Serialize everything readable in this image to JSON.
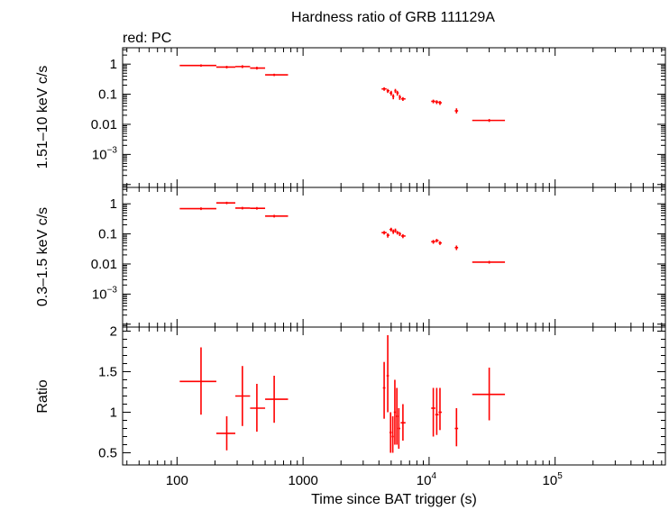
{
  "chart_data": {
    "type": "scatter",
    "title": "Hardness ratio of GRB 111129A",
    "subtitle": "red: PC",
    "xlabel": "Time since BAT trigger (s)",
    "xscale": "log",
    "xlim": [
      37,
      750000
    ],
    "x_ticks": [
      {
        "value": 100,
        "label": "100"
      },
      {
        "value": 1000,
        "label": "1000"
      },
      {
        "value": 10000,
        "label": "10",
        "exp": "4"
      },
      {
        "value": 100000,
        "label": "10",
        "exp": "5"
      }
    ],
    "color": "#ff0000",
    "panels": [
      {
        "id": "hard",
        "ylabel": "1.51–10 keV c/s",
        "yscale": "log",
        "ylim": [
          8e-05,
          3.5
        ],
        "y_ticks": [
          {
            "value": 1,
            "label": "1"
          },
          {
            "value": 0.1,
            "label": "0.1"
          },
          {
            "value": 0.01,
            "label": "0.01"
          },
          {
            "value": 0.001,
            "label": "10",
            "exp": "−3"
          }
        ],
        "points": [
          {
            "x": 155,
            "xlo": 105,
            "xhi": 205,
            "y": 0.9,
            "ylo": 0.82,
            "yhi": 0.98
          },
          {
            "x": 248,
            "xlo": 205,
            "xhi": 290,
            "y": 0.8,
            "ylo": 0.72,
            "yhi": 0.88
          },
          {
            "x": 330,
            "xlo": 290,
            "xhi": 380,
            "y": 0.83,
            "ylo": 0.74,
            "yhi": 0.92
          },
          {
            "x": 430,
            "xlo": 380,
            "xhi": 500,
            "y": 0.74,
            "ylo": 0.66,
            "yhi": 0.82
          },
          {
            "x": 590,
            "xlo": 500,
            "xhi": 760,
            "y": 0.44,
            "ylo": 0.4,
            "yhi": 0.48
          },
          {
            "x": 4400,
            "xlo": 4200,
            "xhi": 4600,
            "y": 0.15,
            "ylo": 0.13,
            "yhi": 0.17
          },
          {
            "x": 4700,
            "xlo": 4600,
            "xhi": 4850,
            "y": 0.13,
            "ylo": 0.11,
            "yhi": 0.15
          },
          {
            "x": 5000,
            "xlo": 4850,
            "xhi": 5100,
            "y": 0.11,
            "ylo": 0.09,
            "yhi": 0.13
          },
          {
            "x": 5200,
            "xlo": 5100,
            "xhi": 5300,
            "y": 0.085,
            "ylo": 0.068,
            "yhi": 0.1
          },
          {
            "x": 5400,
            "xlo": 5300,
            "xhi": 5500,
            "y": 0.13,
            "ylo": 0.11,
            "yhi": 0.15
          },
          {
            "x": 5600,
            "xlo": 5500,
            "xhi": 5750,
            "y": 0.11,
            "ylo": 0.09,
            "yhi": 0.13
          },
          {
            "x": 5850,
            "xlo": 5750,
            "xhi": 6000,
            "y": 0.08,
            "ylo": 0.065,
            "yhi": 0.095
          },
          {
            "x": 6200,
            "xlo": 6000,
            "xhi": 6500,
            "y": 0.07,
            "ylo": 0.06,
            "yhi": 0.08
          },
          {
            "x": 10800,
            "xlo": 10400,
            "xhi": 11200,
            "y": 0.058,
            "ylo": 0.05,
            "yhi": 0.066
          },
          {
            "x": 11500,
            "xlo": 11200,
            "xhi": 11900,
            "y": 0.055,
            "ylo": 0.047,
            "yhi": 0.063
          },
          {
            "x": 12200,
            "xlo": 11900,
            "xhi": 12600,
            "y": 0.052,
            "ylo": 0.044,
            "yhi": 0.06
          },
          {
            "x": 16500,
            "xlo": 16000,
            "xhi": 17000,
            "y": 0.028,
            "ylo": 0.023,
            "yhi": 0.034
          },
          {
            "x": 30000,
            "xlo": 22000,
            "xhi": 40000,
            "y": 0.0135,
            "ylo": 0.012,
            "yhi": 0.015
          }
        ]
      },
      {
        "id": "soft",
        "ylabel": "0.3–1.5 keV c/s",
        "yscale": "log",
        "ylim": [
          8e-05,
          3.5
        ],
        "y_ticks": [
          {
            "value": 1,
            "label": "1"
          },
          {
            "value": 0.1,
            "label": "0.1"
          },
          {
            "value": 0.01,
            "label": "0.01"
          },
          {
            "value": 0.001,
            "label": "10",
            "exp": "−3"
          }
        ],
        "points": [
          {
            "x": 155,
            "xlo": 105,
            "xhi": 205,
            "y": 0.69,
            "ylo": 0.62,
            "yhi": 0.76
          },
          {
            "x": 248,
            "xlo": 205,
            "xhi": 290,
            "y": 1.07,
            "ylo": 0.97,
            "yhi": 1.17
          },
          {
            "x": 330,
            "xlo": 290,
            "xhi": 380,
            "y": 0.72,
            "ylo": 0.65,
            "yhi": 0.79
          },
          {
            "x": 430,
            "xlo": 380,
            "xhi": 500,
            "y": 0.71,
            "ylo": 0.64,
            "yhi": 0.78
          },
          {
            "x": 590,
            "xlo": 500,
            "xhi": 760,
            "y": 0.39,
            "ylo": 0.35,
            "yhi": 0.43
          },
          {
            "x": 4400,
            "xlo": 4200,
            "xhi": 4600,
            "y": 0.11,
            "ylo": 0.095,
            "yhi": 0.125
          },
          {
            "x": 4700,
            "xlo": 4600,
            "xhi": 4850,
            "y": 0.09,
            "ylo": 0.075,
            "yhi": 0.105
          },
          {
            "x": 5000,
            "xlo": 4850,
            "xhi": 5100,
            "y": 0.14,
            "ylo": 0.12,
            "yhi": 0.16
          },
          {
            "x": 5200,
            "xlo": 5100,
            "xhi": 5300,
            "y": 0.12,
            "ylo": 0.1,
            "yhi": 0.14
          },
          {
            "x": 5400,
            "xlo": 5300,
            "xhi": 5500,
            "y": 0.13,
            "ylo": 0.11,
            "yhi": 0.15
          },
          {
            "x": 5600,
            "xlo": 5500,
            "xhi": 5750,
            "y": 0.11,
            "ylo": 0.095,
            "yhi": 0.125
          },
          {
            "x": 5850,
            "xlo": 5750,
            "xhi": 6000,
            "y": 0.1,
            "ylo": 0.085,
            "yhi": 0.115
          },
          {
            "x": 6200,
            "xlo": 6000,
            "xhi": 6500,
            "y": 0.085,
            "ylo": 0.072,
            "yhi": 0.098
          },
          {
            "x": 10800,
            "xlo": 10400,
            "xhi": 11200,
            "y": 0.055,
            "ylo": 0.047,
            "yhi": 0.063
          },
          {
            "x": 11500,
            "xlo": 11200,
            "xhi": 11900,
            "y": 0.06,
            "ylo": 0.052,
            "yhi": 0.068
          },
          {
            "x": 12200,
            "xlo": 11900,
            "xhi": 12600,
            "y": 0.05,
            "ylo": 0.043,
            "yhi": 0.057
          },
          {
            "x": 16500,
            "xlo": 16000,
            "xhi": 17000,
            "y": 0.035,
            "ylo": 0.029,
            "yhi": 0.041
          },
          {
            "x": 30000,
            "xlo": 22000,
            "xhi": 40000,
            "y": 0.0115,
            "ylo": 0.0103,
            "yhi": 0.0127
          }
        ]
      },
      {
        "id": "ratio",
        "ylabel": "Ratio",
        "yscale": "linear",
        "ylim": [
          0.35,
          2.05
        ],
        "y_ticks": [
          {
            "value": 2,
            "label": "2"
          },
          {
            "value": 1.5,
            "label": "1.5"
          },
          {
            "value": 1,
            "label": "1"
          },
          {
            "value": 0.5,
            "label": "0.5"
          }
        ],
        "points": [
          {
            "x": 155,
            "xlo": 105,
            "xhi": 205,
            "y": 1.38,
            "ylo": 0.97,
            "yhi": 1.8
          },
          {
            "x": 248,
            "xlo": 205,
            "xhi": 290,
            "y": 0.74,
            "ylo": 0.53,
            "yhi": 0.95
          },
          {
            "x": 330,
            "xlo": 290,
            "xhi": 380,
            "y": 1.2,
            "ylo": 0.83,
            "yhi": 1.57
          },
          {
            "x": 430,
            "xlo": 380,
            "xhi": 500,
            "y": 1.05,
            "ylo": 0.76,
            "yhi": 1.35
          },
          {
            "x": 590,
            "xlo": 500,
            "xhi": 760,
            "y": 1.16,
            "ylo": 0.87,
            "yhi": 1.45
          },
          {
            "x": 4400,
            "xlo": 4300,
            "xhi": 4500,
            "y": 1.3,
            "ylo": 0.92,
            "yhi": 1.62
          },
          {
            "x": 4700,
            "xlo": 4600,
            "xhi": 4800,
            "y": 1.45,
            "ylo": 1.0,
            "yhi": 1.95
          },
          {
            "x": 4950,
            "xlo": 4850,
            "xhi": 5050,
            "y": 0.75,
            "ylo": 0.5,
            "yhi": 1.0
          },
          {
            "x": 5150,
            "xlo": 5050,
            "xhi": 5250,
            "y": 0.7,
            "ylo": 0.5,
            "yhi": 0.95
          },
          {
            "x": 5350,
            "xlo": 5250,
            "xhi": 5450,
            "y": 1.0,
            "ylo": 0.6,
            "yhi": 1.4
          },
          {
            "x": 5550,
            "xlo": 5450,
            "xhi": 5650,
            "y": 0.95,
            "ylo": 0.6,
            "yhi": 1.3
          },
          {
            "x": 5750,
            "xlo": 5650,
            "xhi": 5900,
            "y": 0.8,
            "ylo": 0.55,
            "yhi": 1.05
          },
          {
            "x": 6200,
            "xlo": 5950,
            "xhi": 6500,
            "y": 0.87,
            "ylo": 0.65,
            "yhi": 1.1
          },
          {
            "x": 10800,
            "xlo": 10400,
            "xhi": 11200,
            "y": 1.05,
            "ylo": 0.7,
            "yhi": 1.3
          },
          {
            "x": 11500,
            "xlo": 11200,
            "xhi": 11900,
            "y": 0.97,
            "ylo": 0.72,
            "yhi": 1.3
          },
          {
            "x": 12200,
            "xlo": 11900,
            "xhi": 12600,
            "y": 1.0,
            "ylo": 0.78,
            "yhi": 1.3
          },
          {
            "x": 16500,
            "xlo": 16000,
            "xhi": 17000,
            "y": 0.8,
            "ylo": 0.58,
            "yhi": 1.05
          },
          {
            "x": 30000,
            "xlo": 22000,
            "xhi": 40000,
            "y": 1.22,
            "ylo": 0.9,
            "yhi": 1.55
          }
        ]
      }
    ]
  }
}
